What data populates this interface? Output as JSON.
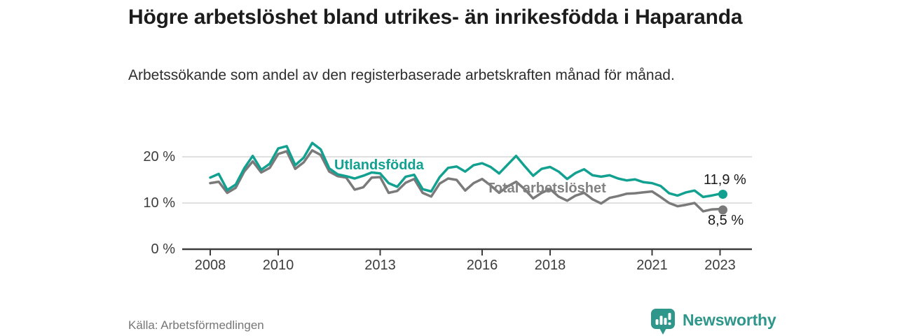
{
  "header": {
    "title": "Högre arbetslöshet bland utrikes- än inrikesfödda i Haparanda",
    "subtitle": "Arbetssökande som andel av den registerbaserade arbetskraften månad för månad."
  },
  "footer": {
    "source": "Källa: Arbetsförmedlingen",
    "brand": {
      "name": "Newsworthy",
      "icon": "newsworthy-bar-chart-pin-icon",
      "color": "#2e968b"
    }
  },
  "chart_data": {
    "type": "line",
    "title": "Högre arbetslöshet bland utrikes- än inrikesfödda i Haparanda",
    "xlabel": "",
    "ylabel": "",
    "unit": "%",
    "ylim": [
      0,
      24
    ],
    "xlim": [
      2007.2,
      2023.9
    ],
    "grid": "horizontal",
    "legend_position": "inline-labels",
    "yticks": [
      "20 %",
      "10 %",
      "0 %"
    ],
    "xticks": [
      "2008",
      "2010",
      "2013",
      "2016",
      "2018",
      "2021",
      "2023"
    ],
    "colors": {
      "gridline": "#e0e0e0",
      "axis": "#3c3c3c",
      "tick_text": "#3d3d3d"
    },
    "series": [
      {
        "name": "Utlandsfödda",
        "color": "#12a191",
        "end_label": "11,9 %",
        "end_value": 11.9,
        "points": [
          [
            "2008-01",
            15.5
          ],
          [
            "2008-04",
            16.3
          ],
          [
            "2008-07",
            12.8
          ],
          [
            "2008-10",
            14.0
          ],
          [
            "2009-01",
            17.5
          ],
          [
            "2009-04",
            20.2
          ],
          [
            "2009-07",
            17.2
          ],
          [
            "2009-10",
            18.5
          ],
          [
            "2010-01",
            21.8
          ],
          [
            "2010-04",
            22.3
          ],
          [
            "2010-07",
            18.2
          ],
          [
            "2010-10",
            19.8
          ],
          [
            "2011-01",
            23.0
          ],
          [
            "2011-04",
            21.6
          ],
          [
            "2011-07",
            17.5
          ],
          [
            "2011-10",
            16.2
          ],
          [
            "2012-01",
            15.8
          ],
          [
            "2012-04",
            15.3
          ],
          [
            "2012-07",
            15.9
          ],
          [
            "2012-10",
            16.6
          ],
          [
            "2013-01",
            16.4
          ],
          [
            "2013-04",
            14.3
          ],
          [
            "2013-07",
            13.5
          ],
          [
            "2013-10",
            15.7
          ],
          [
            "2014-01",
            16.1
          ],
          [
            "2014-04",
            13.0
          ],
          [
            "2014-07",
            12.5
          ],
          [
            "2014-10",
            15.6
          ],
          [
            "2015-01",
            17.6
          ],
          [
            "2015-04",
            17.9
          ],
          [
            "2015-07",
            16.8
          ],
          [
            "2015-10",
            18.2
          ],
          [
            "2016-01",
            18.6
          ],
          [
            "2016-04",
            17.8
          ],
          [
            "2016-07",
            16.4
          ],
          [
            "2016-10",
            18.3
          ],
          [
            "2017-01",
            20.2
          ],
          [
            "2017-04",
            18.0
          ],
          [
            "2017-07",
            15.9
          ],
          [
            "2017-10",
            17.4
          ],
          [
            "2018-01",
            17.8
          ],
          [
            "2018-04",
            16.8
          ],
          [
            "2018-07",
            15.2
          ],
          [
            "2018-10",
            16.5
          ],
          [
            "2019-01",
            17.3
          ],
          [
            "2019-04",
            16.0
          ],
          [
            "2019-07",
            15.7
          ],
          [
            "2019-10",
            16.0
          ],
          [
            "2020-01",
            15.3
          ],
          [
            "2020-04",
            14.9
          ],
          [
            "2020-07",
            15.1
          ],
          [
            "2020-10",
            14.5
          ],
          [
            "2021-01",
            14.3
          ],
          [
            "2021-04",
            13.7
          ],
          [
            "2021-07",
            12.1
          ],
          [
            "2021-10",
            11.6
          ],
          [
            "2022-01",
            12.3
          ],
          [
            "2022-04",
            12.7
          ],
          [
            "2022-07",
            11.3
          ],
          [
            "2022-10",
            11.6
          ],
          [
            "2023-01",
            12.0
          ],
          [
            "2023-02",
            11.9
          ]
        ]
      },
      {
        "name": "Total arbetslöshet",
        "color": "#7a7a7a",
        "end_label": "8,5 %",
        "end_value": 8.5,
        "points": [
          [
            "2008-01",
            14.3
          ],
          [
            "2008-04",
            14.6
          ],
          [
            "2008-07",
            12.2
          ],
          [
            "2008-10",
            13.3
          ],
          [
            "2009-01",
            16.8
          ],
          [
            "2009-04",
            19.0
          ],
          [
            "2009-07",
            16.6
          ],
          [
            "2009-10",
            17.6
          ],
          [
            "2010-01",
            20.6
          ],
          [
            "2010-04",
            21.2
          ],
          [
            "2010-07",
            17.4
          ],
          [
            "2010-10",
            18.8
          ],
          [
            "2011-01",
            21.4
          ],
          [
            "2011-04",
            20.4
          ],
          [
            "2011-07",
            16.8
          ],
          [
            "2011-10",
            15.8
          ],
          [
            "2012-01",
            15.5
          ],
          [
            "2012-04",
            12.9
          ],
          [
            "2012-07",
            13.4
          ],
          [
            "2012-10",
            15.5
          ],
          [
            "2013-01",
            15.6
          ],
          [
            "2013-04",
            12.2
          ],
          [
            "2013-07",
            12.6
          ],
          [
            "2013-10",
            14.4
          ],
          [
            "2014-01",
            15.2
          ],
          [
            "2014-04",
            12.2
          ],
          [
            "2014-07",
            11.4
          ],
          [
            "2014-10",
            14.2
          ],
          [
            "2015-01",
            15.3
          ],
          [
            "2015-04",
            15.0
          ],
          [
            "2015-07",
            12.7
          ],
          [
            "2015-10",
            14.3
          ],
          [
            "2016-01",
            15.2
          ],
          [
            "2016-04",
            13.8
          ],
          [
            "2016-07",
            12.2
          ],
          [
            "2016-10",
            13.6
          ],
          [
            "2017-01",
            14.6
          ],
          [
            "2017-04",
            13.0
          ],
          [
            "2017-07",
            11.0
          ],
          [
            "2017-10",
            12.2
          ],
          [
            "2018-01",
            13.0
          ],
          [
            "2018-04",
            11.4
          ],
          [
            "2018-07",
            10.5
          ],
          [
            "2018-10",
            11.6
          ],
          [
            "2019-01",
            12.2
          ],
          [
            "2019-04",
            10.8
          ],
          [
            "2019-07",
            9.9
          ],
          [
            "2019-10",
            11.1
          ],
          [
            "2020-01",
            11.5
          ],
          [
            "2020-04",
            12.0
          ],
          [
            "2020-07",
            12.1
          ],
          [
            "2020-10",
            12.3
          ],
          [
            "2021-01",
            12.5
          ],
          [
            "2021-04",
            11.3
          ],
          [
            "2021-07",
            10.0
          ],
          [
            "2021-10",
            9.3
          ],
          [
            "2022-01",
            9.6
          ],
          [
            "2022-04",
            10.0
          ],
          [
            "2022-07",
            8.2
          ],
          [
            "2022-10",
            8.6
          ],
          [
            "2023-01",
            8.7
          ],
          [
            "2023-02",
            8.5
          ]
        ]
      }
    ]
  }
}
